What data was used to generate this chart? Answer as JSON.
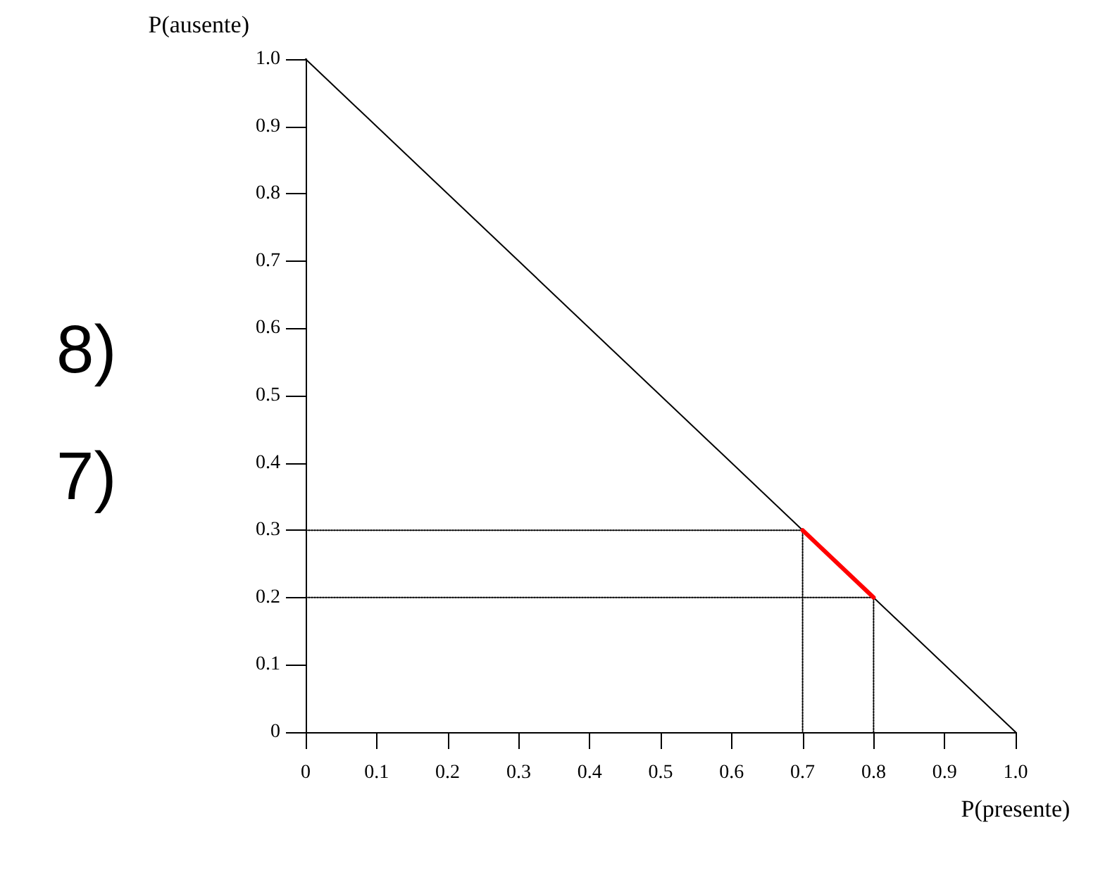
{
  "chart_data": {
    "type": "line",
    "xlabel": "P(presente)",
    "ylabel": "P(ausente)",
    "annotations": [
      "8)",
      "7)"
    ],
    "xlim": [
      0,
      1
    ],
    "ylim": [
      0,
      1
    ],
    "xticks": [
      0,
      0.1,
      0.2,
      0.3,
      0.4,
      0.5,
      0.6,
      0.7,
      0.8,
      0.9,
      {
        "value": 1,
        "label": "1.0"
      }
    ],
    "yticks": [
      0,
      0.1,
      0.2,
      0.3,
      0.4,
      0.5,
      0.6,
      0.7,
      0.8,
      0.9,
      {
        "value": 1,
        "label": "1.0"
      }
    ],
    "marker": "none",
    "series": [
      {
        "color": "#000000",
        "x": [
          0,
          1
        ],
        "values": [
          1,
          0
        ],
        "line_style": "solid"
      },
      {
        "color": "#000000",
        "x": [
          0,
          0.7,
          0.7
        ],
        "values": [
          0.3,
          0.3,
          0
        ],
        "line_style": "dotted"
      },
      {
        "color": "#000000",
        "x": [
          0,
          0.8,
          0.8
        ],
        "values": [
          0.2,
          0.2,
          0
        ],
        "line_style": "dotted"
      },
      {
        "color": "#ff0000",
        "x": [
          0.7,
          0.8
        ],
        "values": [
          0.3,
          0.2
        ],
        "line_style": "solid"
      }
    ]
  }
}
